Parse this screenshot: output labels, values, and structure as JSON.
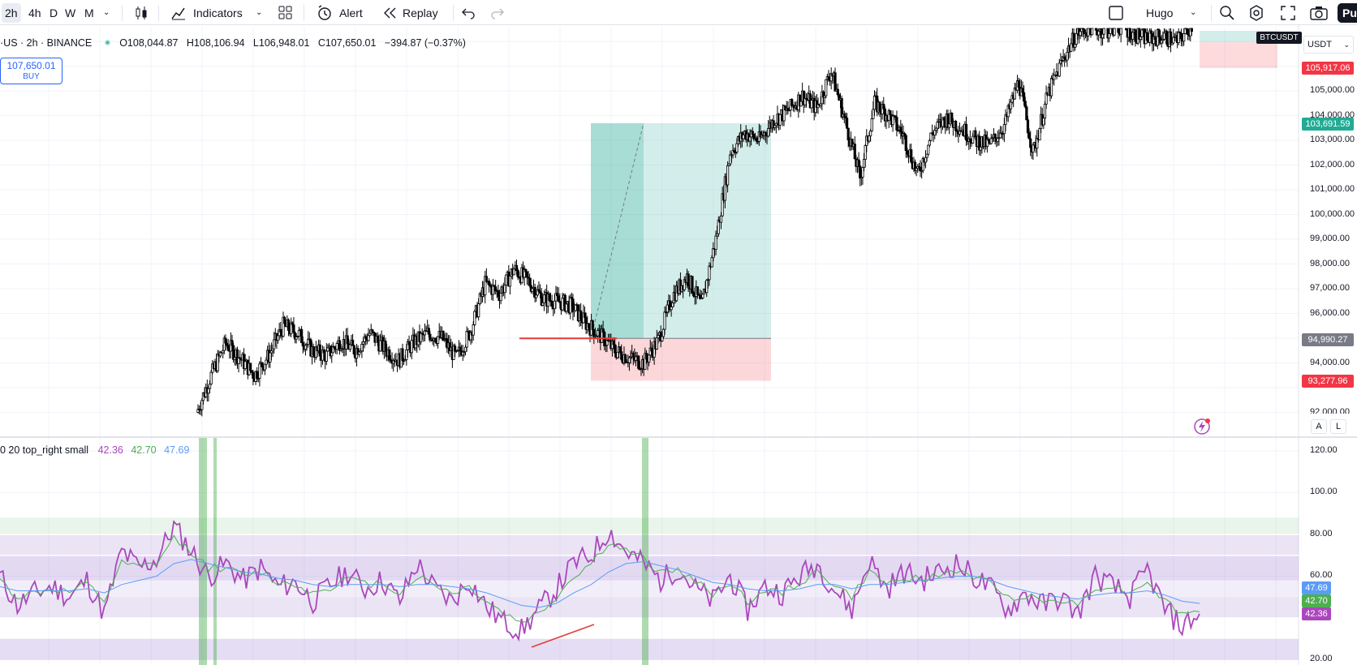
{
  "toolbar": {
    "intervals": [
      "2h",
      "4h",
      "D",
      "W",
      "M"
    ],
    "indicators_label": "Indicators",
    "alert_label": "Alert",
    "replay_label": "Replay",
    "user_label": "Hugo",
    "publish_label": "Pu"
  },
  "symbol": {
    "title": "·US · 2h · BINANCE",
    "open": "O108,044.87",
    "high": "H108,106.94",
    "low": "L106,948.01",
    "close": "C107,650.01",
    "change": "−394.87 (−0.37%)"
  },
  "buy_box": {
    "price": "107,650.01",
    "label": "BUY"
  },
  "price_axis": {
    "currency": "USDT",
    "ticker_badge": "BTCUSDT",
    "labels": [
      "105,000.00",
      "104,000.00",
      "103,000.00",
      "102,000.00",
      "101,000.00",
      "100,000.00",
      "99,000.00",
      "98,000.00",
      "97,000.00",
      "96,000.00",
      "94,000.00",
      "92,000.00"
    ],
    "tags": [
      {
        "text": "105,917.06",
        "color": "#f23645"
      },
      {
        "text": "103,691.59",
        "color": "#22ab94"
      },
      {
        "text": "94,990.27",
        "color": "#787b86"
      },
      {
        "text": "93,277.96",
        "color": "#f23645"
      }
    ],
    "scale_buttons": [
      "A",
      "L"
    ]
  },
  "indicator": {
    "title": "0 20 top_right small",
    "values": [
      "42.36",
      "42.70",
      "47.69"
    ],
    "value_colors": [
      "#ab47bc",
      "#4caf50",
      "#5b9cf6"
    ],
    "axis_labels": [
      "120.00",
      "100.00",
      "80.00",
      "60.00",
      "20.00"
    ],
    "tags": [
      {
        "text": "47.69",
        "color": "#5b9cf6"
      },
      {
        "text": "42.70",
        "color": "#4caf50"
      },
      {
        "text": "42.36",
        "color": "#ab47bc"
      }
    ]
  },
  "chart_data": {
    "type": "candlestick",
    "symbol": "BTCUSDT",
    "interval": "2h",
    "price_range": [
      91800,
      108400
    ],
    "position": {
      "side": "long",
      "entry": 94990.27,
      "target": 103691.59,
      "stop": 93277.96
    },
    "open_position": {
      "entry": 107650.01,
      "stop": 105917.06
    },
    "price_path": [
      92000,
      93500,
      94800,
      94200,
      93500,
      94300,
      95500,
      95200,
      94500,
      94300,
      94900,
      94500,
      95200,
      94600,
      94100,
      94800,
      95200,
      95000,
      94200,
      95300,
      97200,
      96800,
      97800,
      97300,
      96600,
      96500,
      96300,
      95600,
      95100,
      94500,
      94200,
      94000,
      94900,
      96700,
      97500,
      96300,
      99000,
      102500,
      103300,
      103000,
      103800,
      104200,
      104800,
      104300,
      105800,
      103700,
      101500,
      104500,
      104000,
      103200,
      101600,
      103300,
      103900,
      103500,
      103000,
      102800,
      103600,
      105400,
      102500,
      104800,
      106200,
      107300,
      107600,
      107400,
      107600,
      107300,
      107100,
      107200,
      107000,
      107650
    ],
    "rsi_bands": {
      "overbought_zone": [
        80,
        88
      ],
      "bands": [
        [
          70,
          80
        ],
        [
          58,
          70
        ],
        [
          40,
          50
        ],
        [
          20,
          30
        ]
      ]
    },
    "rsi_series": [
      {
        "name": "42.36",
        "color": "#ab47bc",
        "values": [
          60,
          46,
          52,
          55,
          50,
          58,
          42,
          72,
          64,
          68,
          84,
          72,
          60,
          66,
          58,
          64,
          55,
          57,
          48,
          56,
          62,
          54,
          58,
          48,
          66,
          54,
          48,
          58,
          45,
          38,
          34,
          44,
          54,
          66,
          70,
          82,
          72,
          66,
          58,
          64,
          54,
          48,
          60,
          44,
          55,
          52,
          60,
          66,
          54,
          44,
          68,
          54,
          62,
          58,
          62,
          66,
          60,
          54,
          44,
          52,
          46,
          50,
          42,
          60,
          55,
          50,
          63,
          44,
          36,
          42
        ]
      },
      {
        "name": "42.70",
        "color": "#4caf50",
        "values": [
          58,
          50,
          52,
          54,
          52,
          56,
          48,
          66,
          64,
          66,
          78,
          72,
          64,
          64,
          60,
          62,
          57,
          56,
          52,
          55,
          59,
          56,
          57,
          52,
          60,
          56,
          52,
          55,
          48,
          42,
          38,
          42,
          50,
          60,
          66,
          76,
          72,
          68,
          62,
          63,
          57,
          52,
          57,
          48,
          53,
          52,
          57,
          62,
          56,
          50,
          62,
          56,
          60,
          58,
          60,
          63,
          60,
          56,
          50,
          51,
          48,
          49,
          46,
          55,
          55,
          52,
          58,
          48,
          42,
          43
        ]
      },
      {
        "name": "47.69",
        "color": "#5b9cf6",
        "values": [
          55,
          53,
          53,
          53,
          53,
          54,
          52,
          56,
          58,
          60,
          66,
          68,
          66,
          64,
          62,
          61,
          59,
          58,
          56,
          55,
          56,
          56,
          56,
          55,
          56,
          56,
          55,
          54,
          52,
          49,
          46,
          45,
          47,
          52,
          56,
          62,
          66,
          67,
          65,
          63,
          60,
          57,
          56,
          54,
          53,
          53,
          54,
          56,
          56,
          54,
          56,
          56,
          57,
          58,
          59,
          60,
          60,
          58,
          55,
          53,
          51,
          50,
          49,
          51,
          52,
          52,
          53,
          51,
          48,
          47
        ]
      }
    ]
  }
}
